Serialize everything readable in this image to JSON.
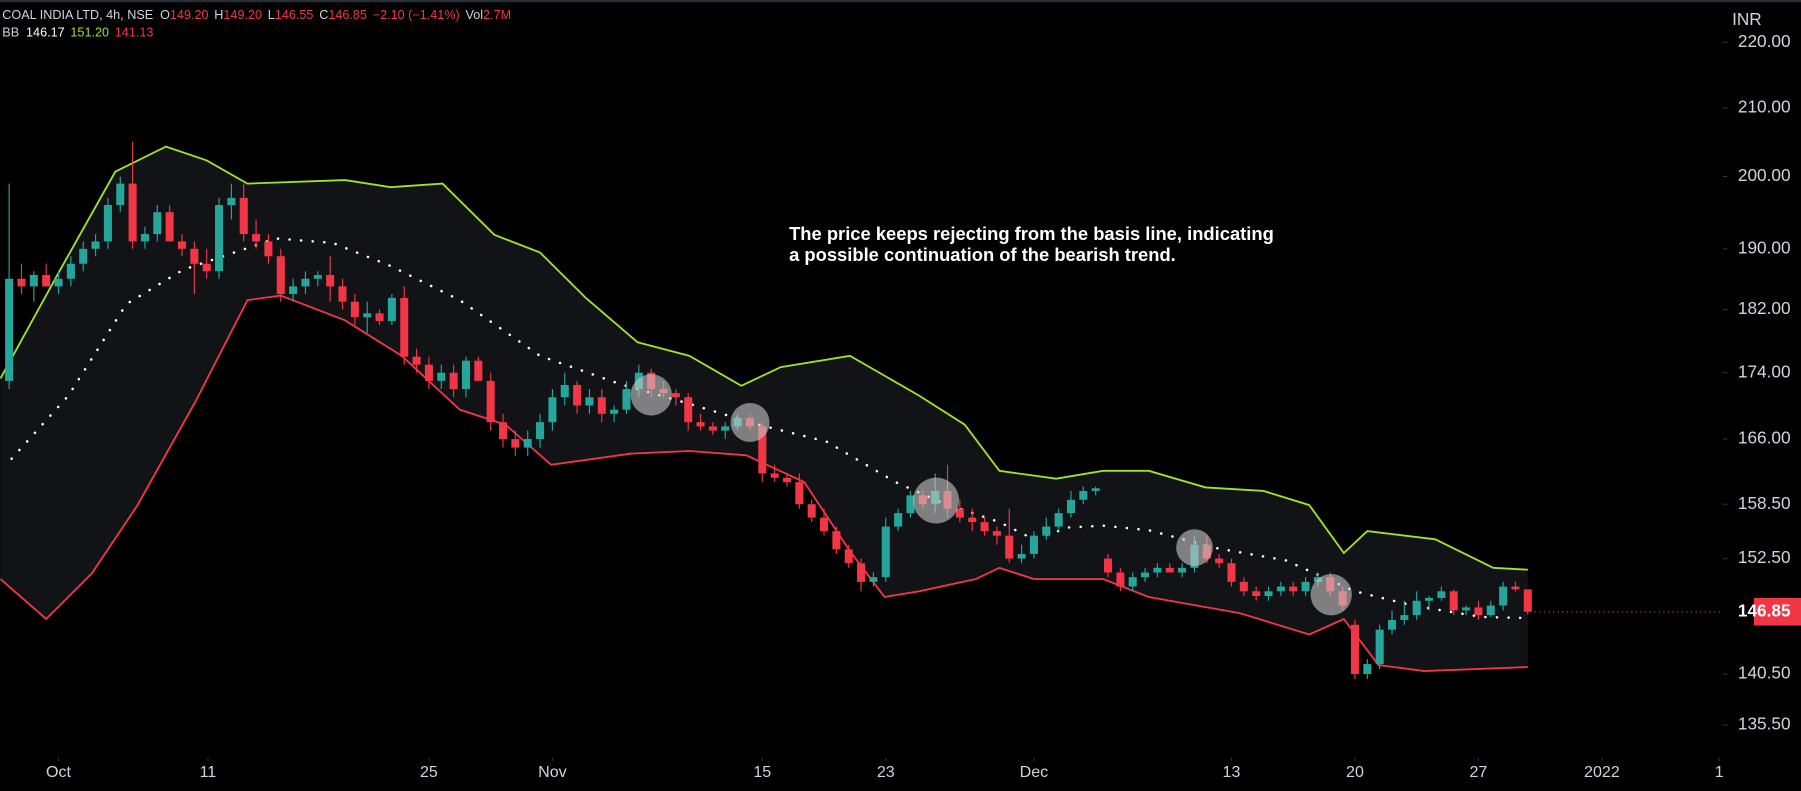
{
  "chart_data": {
    "type": "candlestick",
    "header": {
      "symbol": "COAL INDIA LTD, 4h, NSE",
      "fields": [
        {
          "key": "O",
          "value": "149.20"
        },
        {
          "key": "H",
          "value": "149.20"
        },
        {
          "key": "L",
          "value": "146.55"
        },
        {
          "key": "C",
          "value": "146.85"
        }
      ],
      "change": "−2.10 (−1.41%)",
      "volume": {
        "key": "Vol",
        "value": "2.7M"
      },
      "indicator": {
        "name": "BB",
        "values": [
          "146.17",
          "151.20",
          "141.13"
        ]
      }
    },
    "currency": "INR",
    "annotation": [
      "The price keeps rejecting from the basis line, indicating",
      "a possible continuation of the bearish trend."
    ],
    "up_color": "#26a69a",
    "down_color": "#f23645",
    "log": true,
    "grid": false,
    "ylim": [
      132.4,
      226.7
    ],
    "yticks": [
      {
        "value": 220,
        "label": "220.00"
      },
      {
        "value": 210,
        "label": "210.00"
      },
      {
        "value": 200,
        "label": "200.00"
      },
      {
        "value": 190,
        "label": "190.00"
      },
      {
        "value": 182,
        "label": "182.00"
      },
      {
        "value": 174,
        "label": "174.00"
      },
      {
        "value": 166,
        "label": "166.00"
      },
      {
        "value": 158.5,
        "label": "158.50"
      },
      {
        "value": 152.5,
        "label": "152.50"
      },
      {
        "value": 140.5,
        "label": "140.50"
      },
      {
        "value": 135.5,
        "label": "135.50"
      }
    ],
    "xlim": [
      -0.74,
      138.8
    ],
    "xticks": [
      {
        "value": 4.0,
        "label": "Oct"
      },
      {
        "value": 16.1,
        "label": "11"
      },
      {
        "value": 34.0,
        "label": "25"
      },
      {
        "value": 44.0,
        "label": "Nov"
      },
      {
        "value": 61.0,
        "label": "15"
      },
      {
        "value": 71.0,
        "label": "23"
      },
      {
        "value": 83.0,
        "label": "Dec"
      },
      {
        "value": 99.0,
        "label": "13"
      },
      {
        "value": 109.0,
        "label": "20"
      },
      {
        "value": 119.0,
        "label": "27"
      },
      {
        "value": 129.0,
        "label": "2022"
      },
      {
        "value": 138.5,
        "label": "1"
      }
    ],
    "last_price": 146.85,
    "ohlc": [
      [
        173,
        199,
        172,
        186
      ],
      [
        186,
        188,
        184,
        185
      ],
      [
        185,
        187,
        183,
        186.5
      ],
      [
        186.5,
        188,
        185,
        185
      ],
      [
        185,
        187,
        184,
        186
      ],
      [
        186,
        189,
        185,
        188
      ],
      [
        188,
        191,
        187,
        190
      ],
      [
        190,
        192,
        189,
        191
      ],
      [
        191,
        197,
        190,
        196
      ],
      [
        196,
        200,
        195,
        199
      ],
      [
        199,
        205,
        190,
        191
      ],
      [
        191,
        193,
        190,
        192
      ],
      [
        192,
        196,
        191,
        195
      ],
      [
        195,
        196,
        191,
        191
      ],
      [
        191,
        192,
        189,
        190
      ],
      [
        190,
        191,
        184,
        188
      ],
      [
        188,
        190,
        186,
        187
      ],
      [
        187,
        197,
        186,
        196
      ],
      [
        196,
        199,
        194,
        197
      ],
      [
        197,
        199,
        191,
        192
      ],
      [
        192,
        194,
        190,
        191
      ],
      [
        191,
        192,
        188,
        189
      ],
      [
        189,
        190,
        183,
        184
      ],
      [
        184,
        186,
        183,
        185
      ],
      [
        185,
        187,
        184,
        186
      ],
      [
        186,
        187,
        185,
        186.5
      ],
      [
        186.5,
        189,
        183,
        185
      ],
      [
        185,
        186,
        182,
        183
      ],
      [
        183,
        184,
        180,
        181
      ],
      [
        181,
        183,
        179,
        181.5
      ],
      [
        181.5,
        182,
        180,
        180.5
      ],
      [
        180.5,
        184,
        180,
        183.5
      ],
      [
        183.5,
        185,
        175,
        176
      ],
      [
        176,
        177,
        174,
        175
      ],
      [
        175,
        176,
        172,
        173
      ],
      [
        173,
        175,
        172,
        174
      ],
      [
        174,
        175,
        171,
        172
      ],
      [
        172,
        176,
        171,
        175.5
      ],
      [
        175.5,
        176,
        173,
        173
      ],
      [
        173,
        174,
        167,
        168
      ],
      [
        168,
        169,
        165,
        166
      ],
      [
        166,
        167,
        164,
        165
      ],
      [
        165,
        167,
        164,
        166
      ],
      [
        166,
        169,
        165,
        168
      ],
      [
        168,
        172,
        167,
        171
      ],
      [
        171,
        174,
        170,
        172.5
      ],
      [
        172.5,
        173,
        169,
        170
      ],
      [
        170,
        172,
        169,
        171
      ],
      [
        171,
        172,
        168,
        169
      ],
      [
        169,
        170,
        168,
        169.5
      ],
      [
        169.5,
        173,
        169,
        172
      ],
      [
        172,
        175,
        171,
        174
      ],
      [
        174,
        174.5,
        171,
        172
      ],
      [
        172,
        173,
        171,
        171.5
      ],
      [
        171.5,
        172,
        170,
        171
      ],
      [
        171,
        171.5,
        167,
        168
      ],
      [
        168,
        169,
        167,
        167.5
      ],
      [
        167.5,
        168,
        166.5,
        167
      ],
      [
        167,
        168,
        166,
        167.5
      ],
      [
        167.5,
        169,
        167,
        168.5
      ],
      [
        168.5,
        169,
        167,
        167.5
      ],
      [
        167.5,
        168,
        161,
        162
      ],
      [
        162,
        163,
        161,
        161.5
      ],
      [
        161.5,
        162,
        160.5,
        161
      ],
      [
        161,
        162,
        158,
        158.5
      ],
      [
        158.5,
        159,
        156.5,
        157
      ],
      [
        157,
        158,
        155,
        155.5
      ],
      [
        155.5,
        156,
        153,
        153.5
      ],
      [
        153.5,
        154,
        151.5,
        152
      ],
      [
        152,
        152.5,
        149,
        150
      ],
      [
        150,
        151,
        149.5,
        150.5
      ],
      [
        150.5,
        157,
        150,
        156
      ],
      [
        156,
        158,
        155.5,
        157.5
      ],
      [
        157.5,
        160,
        157,
        159.5
      ],
      [
        159.5,
        160,
        158,
        158.5
      ],
      [
        158.5,
        162,
        157.5,
        160
      ],
      [
        160,
        163,
        157,
        158
      ],
      [
        158,
        159,
        156.5,
        157
      ],
      [
        157,
        158,
        155.5,
        156.5
      ],
      [
        156.5,
        157,
        155,
        155.5
      ],
      [
        155.5,
        156,
        154,
        155
      ],
      [
        155,
        158,
        152,
        152.5
      ],
      [
        152.5,
        154,
        152,
        153
      ],
      [
        153,
        155.5,
        152.5,
        155
      ],
      [
        155,
        157,
        154.5,
        156
      ],
      [
        156,
        158,
        155.5,
        157.5
      ],
      [
        157.5,
        160,
        157,
        159
      ],
      [
        159,
        160.5,
        158.5,
        160
      ],
      [
        160,
        160.5,
        159.5,
        160.3
      ],
      [
        152.5,
        153,
        150.5,
        151
      ],
      [
        151,
        151.5,
        149,
        149.5
      ],
      [
        149.5,
        151,
        149,
        150.5
      ],
      [
        150.5,
        151.5,
        150,
        151
      ],
      [
        151,
        152,
        150.5,
        151.5
      ],
      [
        151.5,
        152,
        151,
        151
      ],
      [
        151,
        152,
        150.5,
        151.5
      ],
      [
        151.5,
        155,
        151,
        154
      ],
      [
        154,
        155,
        152,
        152.5
      ],
      [
        152.5,
        153,
        151.5,
        152
      ],
      [
        152,
        152.5,
        149.5,
        150
      ],
      [
        150,
        150.5,
        148.5,
        149
      ],
      [
        149,
        149.5,
        148,
        148.5
      ],
      [
        148.5,
        149.5,
        148,
        149
      ],
      [
        149,
        150,
        148.5,
        149.5
      ],
      [
        149.5,
        150,
        148.5,
        149
      ],
      [
        149,
        150.5,
        148.5,
        150
      ],
      [
        150,
        151,
        149.5,
        150.5
      ],
      [
        150.5,
        151,
        148.5,
        149
      ],
      [
        149,
        149.5,
        147,
        147.5
      ],
      [
        145.5,
        146,
        140,
        140.5
      ],
      [
        140.5,
        142,
        140,
        141.5
      ],
      [
        141.5,
        145.5,
        141,
        145
      ],
      [
        145,
        147,
        144.5,
        146
      ],
      [
        146,
        148,
        145.5,
        146.5
      ],
      [
        146.5,
        149,
        146,
        148
      ],
      [
        148,
        148.5,
        147,
        148.3
      ],
      [
        148.3,
        149.5,
        148,
        149
      ],
      [
        149,
        149.2,
        146.5,
        147
      ],
      [
        147,
        147.5,
        146.5,
        147.3
      ],
      [
        147.3,
        148,
        146,
        146.5
      ],
      [
        146.5,
        148,
        146.3,
        147.5
      ],
      [
        147.5,
        150,
        147,
        149.5
      ],
      [
        149.5,
        150,
        149,
        149.2
      ],
      [
        149.2,
        149.2,
        146.55,
        146.85
      ]
    ],
    "bands": {
      "upper": {
        "color": "#9be52c",
        "x": [
          -0.7,
          3.9,
          8.6,
          12.7,
          16.0,
          19.3,
          27.2,
          30.9,
          35.1,
          39.3,
          43.0,
          46.7,
          50.9,
          55.1,
          59.3,
          62.5,
          68.1,
          73.7,
          77.4,
          80.2,
          84.8,
          88.6,
          92.3,
          96.9,
          101.6,
          105.3,
          108.1,
          110.0,
          115.5,
          120.2,
          123.0
        ],
        "values": [
          173.3,
          186.5,
          200.7,
          204.3,
          202.3,
          199.0,
          199.5,
          198.5,
          199.0,
          191.9,
          189.5,
          183.5,
          177.8,
          176.1,
          172.4,
          174.7,
          176.1,
          171.2,
          167.7,
          162.3,
          161.4,
          162.3,
          162.3,
          160.4,
          160.0,
          158.4,
          153.1,
          155.5,
          154.6,
          151.5,
          151.3
        ]
      },
      "lower": {
        "color": "#f23645",
        "x": [
          -0.7,
          3.0,
          6.7,
          10.4,
          15.1,
          19.3,
          22.0,
          27.2,
          31.8,
          36.5,
          40.2,
          43.9,
          50.4,
          55.1,
          59.7,
          64.4,
          68.1,
          70.9,
          73.7,
          78.3,
          80.2,
          83.0,
          88.6,
          92.3,
          99.7,
          105.3,
          108.1,
          110.9,
          114.6,
          123.0
        ],
        "values": [
          150.3,
          146.1,
          150.9,
          158.4,
          170.5,
          183.2,
          183.8,
          180.6,
          176.1,
          169.5,
          167.7,
          163.0,
          164.3,
          164.6,
          164.1,
          161.0,
          153.3,
          148.4,
          149.0,
          150.3,
          151.5,
          150.3,
          150.3,
          148.4,
          146.7,
          144.5,
          146.1,
          141.4,
          140.8,
          141.2
        ]
      },
      "basis": {
        "color": "#ffffff",
        "x": [
          0.2,
          4.8,
          9.5,
          14.1,
          21.6,
          26.2,
          30.9,
          36.5,
          43.0,
          49.5,
          55.1,
          60.7,
          66.2,
          71.8,
          75.5,
          80.2,
          83.0,
          85.8,
          88.6,
          92.3,
          97.9,
          103.4,
          109.0,
          113.7,
          119.3,
          123.0
        ],
        "values": [
          163.7,
          171.2,
          182.7,
          187.2,
          191.4,
          190.8,
          187.7,
          183.2,
          176.1,
          172.6,
          170.2,
          167.7,
          165.7,
          161.0,
          158.7,
          156.5,
          154.6,
          155.9,
          156.1,
          155.6,
          153.6,
          152.3,
          149.0,
          147.5,
          146.3,
          146.2
        ]
      }
    }
  }
}
